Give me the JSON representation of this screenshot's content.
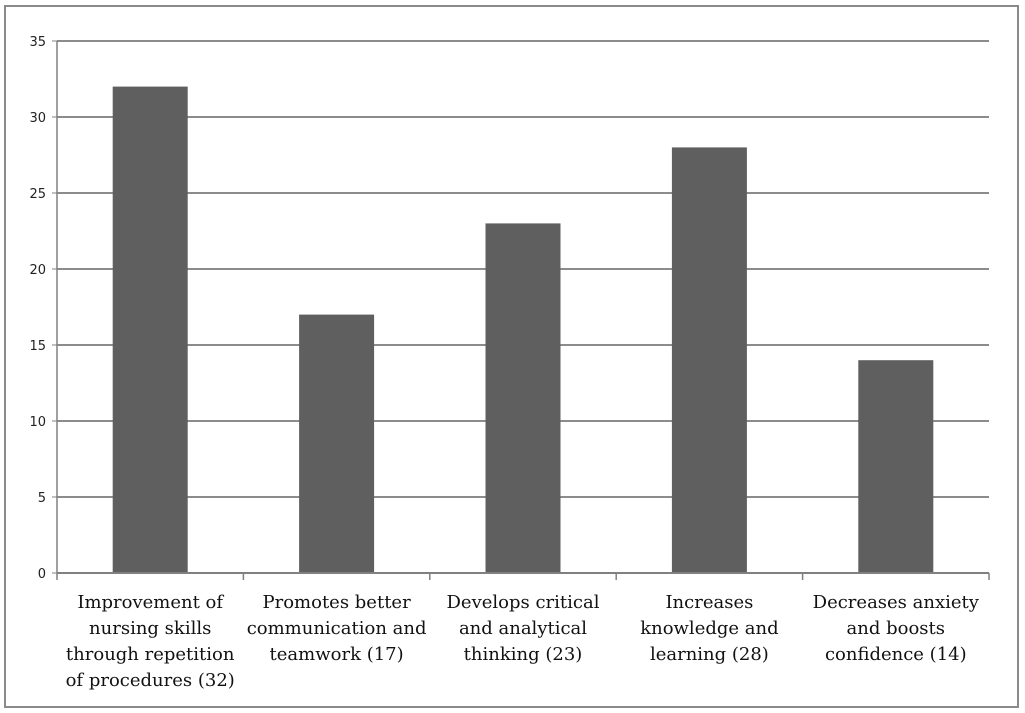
{
  "chart_data": {
    "type": "bar",
    "categories": [
      [
        "Improvement of",
        "nursing skills",
        "through repetition",
        "of procedures (32)"
      ],
      [
        "Promotes better",
        "communication and",
        "teamwork (17)"
      ],
      [
        "Develops critical",
        "and analytical",
        "thinking (23)"
      ],
      [
        "Increases",
        "knowledge and",
        "learning (28)"
      ],
      [
        "Decreases anxiety",
        "and boosts",
        "confidence (14)"
      ]
    ],
    "values": [
      32,
      17,
      23,
      28,
      14
    ],
    "yticks": [
      0,
      5,
      10,
      15,
      20,
      25,
      30,
      35
    ],
    "ylim": [
      0,
      35
    ],
    "grid": true,
    "legend": "none",
    "title": "",
    "xlabel": "",
    "ylabel": "",
    "bar_color": "#5f5f5f",
    "grid_color": "#8c8c8c"
  }
}
